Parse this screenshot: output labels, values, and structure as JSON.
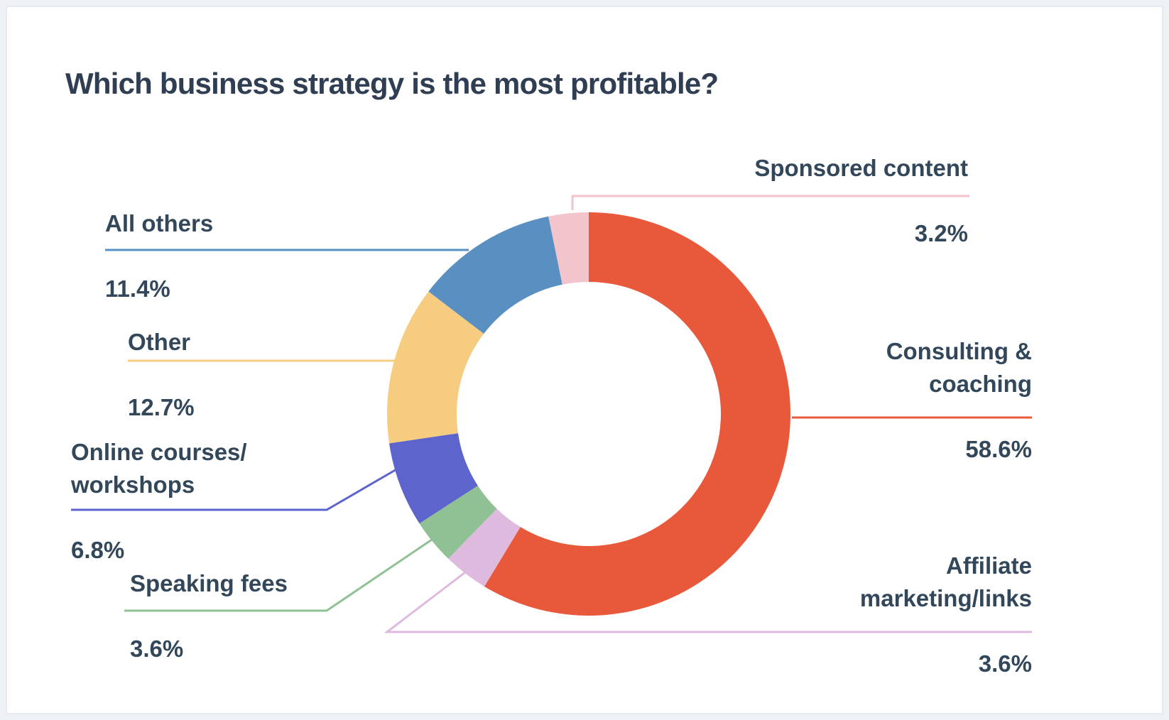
{
  "page": {
    "title": "Which business strategy is the most profitable?"
  },
  "chart_data": {
    "type": "pie",
    "subtype": "donut",
    "title": "Which business strategy is the most profitable?",
    "unit": "%",
    "total_shown": 99.9,
    "legend_position": "callout-labels-around-donut",
    "donut_hole_ratio": 0.655,
    "start_angle_deg": 0,
    "direction": "clockwise",
    "segments": [
      {
        "label": "Consulting &\ncoaching",
        "value": 58.6,
        "display": "58.6%",
        "color": "#e8593c",
        "callout_side": "right"
      },
      {
        "label": "Affiliate\nmarketing/links",
        "value": 3.6,
        "display": "3.6%",
        "color": "#debade",
        "callout_side": "right"
      },
      {
        "label": "Speaking fees",
        "value": 3.6,
        "display": "3.6%",
        "color": "#90c194",
        "callout_side": "left"
      },
      {
        "label": "Online courses/\nworkshops",
        "value": 6.8,
        "display": "6.8%",
        "color": "#5d65cc",
        "callout_side": "left"
      },
      {
        "label": "Other",
        "value": 12.7,
        "display": "12.7%",
        "color": "#f6cc81",
        "callout_side": "left"
      },
      {
        "label": "All others",
        "value": 11.4,
        "display": "11.4%",
        "color": "#5a8fc2",
        "callout_side": "left"
      },
      {
        "label": "Sponsored content",
        "value": 3.2,
        "display": "3.2%",
        "color": "#f2c5cc",
        "callout_side": "right"
      }
    ]
  },
  "colors": {
    "title_text": "#2f3e52",
    "label_text": "#33475b",
    "card_background": "#ffffff",
    "page_background": "#eef1f4",
    "card_border": "#e6ebf1"
  }
}
